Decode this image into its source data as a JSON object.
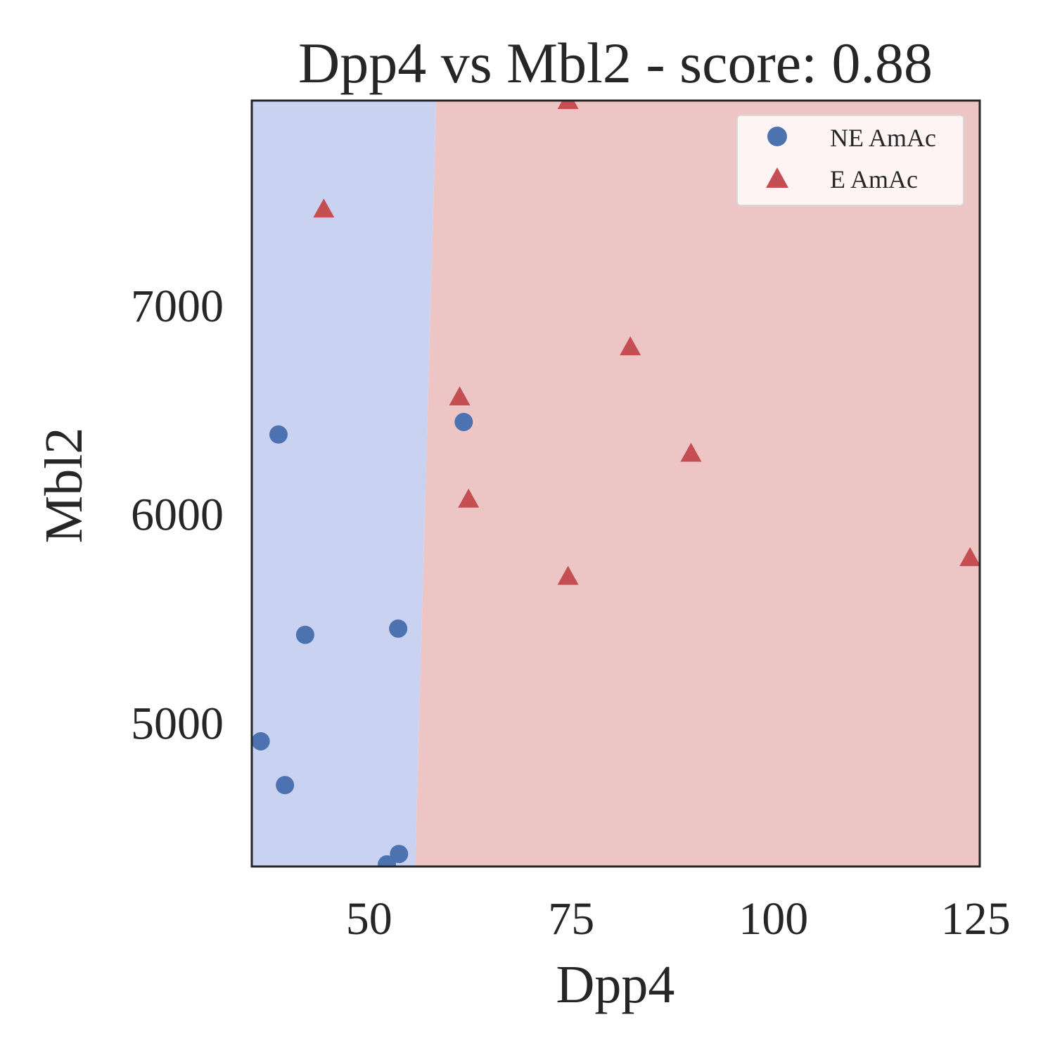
{
  "chart_data": {
    "type": "scatter",
    "title": "Dpp4 vs Mbl2 - score: 0.88",
    "xlabel": "Dpp4",
    "ylabel": "Mbl2",
    "xlim": [
      35.5,
      125.5
    ],
    "ylim": [
      4310,
      7980
    ],
    "xticks": [
      50,
      75,
      100,
      125
    ],
    "yticks": [
      5000,
      6000,
      7000
    ],
    "grid": false,
    "legend_position": "top-right",
    "decision_boundary": [
      [
        58.3,
        7980
      ],
      [
        55.7,
        4310
      ]
    ],
    "regions": [
      {
        "name": "NE AmAc",
        "side": "left",
        "color": "#c9d2f1"
      },
      {
        "name": "E AmAc",
        "side": "right",
        "color": "#ecc5c4"
      }
    ],
    "series": [
      {
        "name": "NE AmAc",
        "marker": "circle",
        "color": "#4c72b0",
        "points": [
          [
            36.6,
            4910
          ],
          [
            38.8,
            6380
          ],
          [
            39.6,
            4700
          ],
          [
            42.1,
            5420
          ],
          [
            52.2,
            4320
          ],
          [
            53.6,
            5450
          ],
          [
            53.7,
            4370
          ],
          [
            61.7,
            6440
          ]
        ]
      },
      {
        "name": "E AmAc",
        "marker": "triangle",
        "color": "#c44e52",
        "points": [
          [
            44.4,
            7460
          ],
          [
            61.2,
            6560
          ],
          [
            62.3,
            6070
          ],
          [
            74.6,
            5700
          ],
          [
            74.6,
            7980
          ],
          [
            82.3,
            6800
          ],
          [
            89.8,
            6290
          ],
          [
            124.3,
            5790
          ]
        ]
      }
    ]
  }
}
